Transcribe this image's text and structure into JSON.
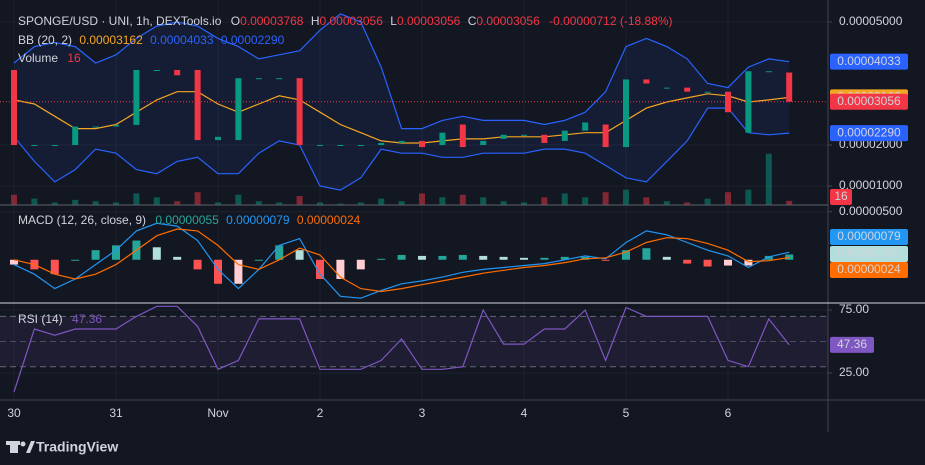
{
  "chart_data": [
    {
      "type": "candlestick",
      "title": "SPONGE/USD · UNI, 1h, DEXTools.io",
      "ohlc": [
        {
          "key": "O",
          "value": "0.00003768"
        },
        {
          "key": "H",
          "value": "0.00003056"
        },
        {
          "key": "L",
          "value": "0.00003056"
        },
        {
          "key": "C",
          "value": "0.00003056"
        }
      ],
      "change": "-0.00000712 (-18.88%)",
      "categories": [
        "30",
        null,
        null,
        null,
        null,
        "31",
        null,
        null,
        null,
        null,
        "Nov",
        null,
        null,
        null,
        null,
        "2",
        null,
        null,
        null,
        null,
        "3",
        null,
        null,
        null,
        null,
        "4",
        null,
        null,
        null,
        null,
        "5",
        null,
        null,
        null,
        null,
        "6",
        null,
        null,
        null
      ],
      "open": [
        3.83e-05,
        2e-05,
        2e-05,
        2e-05,
        2.45e-05,
        2.45e-05,
        2.49e-05,
        3.83e-05,
        3.83e-05,
        3.83e-05,
        2.12e-05,
        2.12e-05,
        3.63e-05,
        3.63e-05,
        3.63e-05,
        2e-05,
        2e-05,
        2e-05,
        2e-05,
        2.05e-05,
        2.1e-05,
        2e-05,
        2.5e-05,
        2e-05,
        2.15e-05,
        2.25e-05,
        2.25e-05,
        2.1e-05,
        2.35e-05,
        2.5e-05,
        1.95e-05,
        3.6e-05,
        3.4e-05,
        3.4e-05,
        3.3e-05,
        3.3e-05,
        2.3e-05,
        3.8e-05,
        3.768e-05
      ],
      "close": [
        2e-05,
        2e-05,
        2e-05,
        2.45e-05,
        2.45e-05,
        2.49e-05,
        3.83e-05,
        3.83e-05,
        3.7e-05,
        2.12e-05,
        2.2e-05,
        3.63e-05,
        3.63e-05,
        3.63e-05,
        2e-05,
        2e-05,
        2e-05,
        2e-05,
        2.05e-05,
        2.1e-05,
        1.95e-05,
        2.3e-05,
        1.95e-05,
        2.1e-05,
        2.25e-05,
        2.25e-05,
        2.05e-05,
        2.35e-05,
        2.55e-05,
        1.95e-05,
        3.6e-05,
        3.5e-05,
        3.4e-05,
        3.3e-05,
        3.3e-05,
        2.8e-05,
        3.8e-05,
        3.8e-05,
        3.056e-05
      ],
      "up_color": "#089981",
      "down_color": "#f23645",
      "ylim": [
        5.37e-06,
        5.537e-05
      ],
      "yticks": [
        {
          "value": 5e-05,
          "label": "0.00005000"
        },
        {
          "value": 2e-05,
          "label": "0.00002000"
        },
        {
          "value": 1e-05,
          "label": "0.00001000"
        }
      ],
      "grid": true,
      "bollinger": {
        "name": "BB (20, 2)",
        "legend": [
          {
            "value": "0.00003162",
            "color": "#f5a623"
          },
          {
            "value": "0.00004033",
            "color": "#2962ff"
          },
          {
            "value": "0.00002290",
            "color": "#2962ff"
          }
        ],
        "upper": [
          4e-05,
          4.4e-05,
          4.5e-05,
          4.4e-05,
          4e-05,
          4.2e-05,
          4.6e-05,
          4.9e-05,
          5e-05,
          4.9e-05,
          4.6e-05,
          4.4e-05,
          4.1e-05,
          4.2e-05,
          4.3e-05,
          4.8e-05,
          5.2e-05,
          5e-05,
          3.9e-05,
          2.4e-05,
          2.4e-05,
          2.6e-05,
          2.7e-05,
          2.6e-05,
          2.6e-05,
          2.6e-05,
          2.5e-05,
          2.6e-05,
          2.8e-05,
          3.3e-05,
          4.4e-05,
          4.6e-05,
          4.4e-05,
          4.1e-05,
          3.5e-05,
          3.4e-05,
          3.9e-05,
          4.1e-05,
          4.033e-05
        ],
        "middle": [
          3.1e-05,
          3e-05,
          2.7e-05,
          2.4e-05,
          2.4e-05,
          2.5e-05,
          2.8e-05,
          3.1e-05,
          3.3e-05,
          3.3e-05,
          3e-05,
          2.8e-05,
          3e-05,
          3.2e-05,
          3.1e-05,
          2.8e-05,
          2.5e-05,
          2.3e-05,
          2.1e-05,
          2.05e-05,
          2.05e-05,
          2.1e-05,
          2.15e-05,
          2.15e-05,
          2.2e-05,
          2.2e-05,
          2.2e-05,
          2.25e-05,
          2.3e-05,
          2.3e-05,
          2.6e-05,
          2.9e-05,
          3.05e-05,
          3.15e-05,
          3.25e-05,
          3.2e-05,
          3.05e-05,
          3.1e-05,
          3.162e-05
        ],
        "lower": [
          2.2e-05,
          1.6e-05,
          1.1e-05,
          1.4e-05,
          1.9e-05,
          1.8e-05,
          1.4e-05,
          1.3e-05,
          1.6e-05,
          1.7e-05,
          1.3e-05,
          1.3e-05,
          1.8e-05,
          2.1e-05,
          2e-05,
          1e-05,
          9e-06,
          1.2e-05,
          1.9e-05,
          1.8e-05,
          1.8e-05,
          1.7e-05,
          1.7e-05,
          1.8e-05,
          1.8e-05,
          1.8e-05,
          1.9e-05,
          1.9e-05,
          1.8e-05,
          1.5e-05,
          1.2e-05,
          1.1e-05,
          1.6e-05,
          2.1e-05,
          2.9e-05,
          2.9e-05,
          2.3e-05,
          2.25e-05,
          2.29e-05
        ],
        "band_color": "#2962ff",
        "middle_color": "#f5a623"
      },
      "volume": {
        "name": "Volume",
        "values": [
          40,
          25,
          10,
          20,
          15,
          10,
          45,
          30,
          15,
          50,
          10,
          40,
          15,
          10,
          35,
          10,
          5,
          10,
          25,
          15,
          45,
          30,
          40,
          30,
          15,
          10,
          30,
          45,
          30,
          50,
          60,
          30,
          15,
          10,
          25,
          50,
          60,
          200,
          16
        ],
        "ylim": [
          0,
          800
        ]
      },
      "price_tags": [
        {
          "value": 4.033e-05,
          "label": "0.00004033",
          "color": "#2962ff"
        },
        {
          "value": 3.162e-05,
          "label": "0.00003162",
          "color": "#f5a623"
        },
        {
          "value": 3.056e-05,
          "label": "0.00003056",
          "color": "#f23645"
        },
        {
          "value": 2.29e-05,
          "label": "0.00002290",
          "color": "#2962ff"
        }
      ]
    },
    {
      "type": "macd",
      "name": "MACD (12, 26, close, 9)",
      "legend": [
        {
          "value": "0.00000055",
          "color": "#26a69a"
        },
        {
          "value": "0.00000079",
          "color": "#2196f3"
        },
        {
          "value": "0.00000024",
          "color": "#ff6d00"
        }
      ],
      "histogram": [
        -5e-07,
        -1e-06,
        -1.5e-06,
        0,
        1e-06,
        1.5e-06,
        2e-06,
        1.3e-06,
        3e-07,
        -1e-06,
        -2.5e-06,
        -2.5e-06,
        0,
        1.5e-06,
        1e-06,
        -2e-06,
        -2e-06,
        -1e-06,
        1e-07,
        5e-07,
        4e-07,
        4e-07,
        5e-07,
        4e-07,
        3e-07,
        2e-07,
        2e-07,
        3e-07,
        3e-07,
        -1e-07,
        1e-06,
        1.2e-06,
        3e-07,
        -4e-07,
        -7e-07,
        -6e-07,
        -6e-07,
        4e-07,
        5.5e-07
      ],
      "macd": [
        -5e-07,
        -1.5e-06,
        -3e-06,
        -2e-06,
        -5e-07,
        1e-06,
        3e-06,
        3.8e-06,
        3.5e-06,
        2e-06,
        -1e-06,
        -3e-06,
        -1e-06,
        1.5e-06,
        2.2e-06,
        -1.5e-06,
        -3.8e-06,
        -4e-06,
        -3.2e-06,
        -2.5e-06,
        -2.2e-06,
        -1.8e-06,
        -1.3e-06,
        -1e-06,
        -8e-07,
        -6e-07,
        -4e-07,
        0,
        4e-07,
        1e-07,
        1.8e-06,
        3e-06,
        2.6e-06,
        1.8e-06,
        1e-06,
        4e-07,
        -8e-07,
        3e-07,
        7.9e-07
      ],
      "signal": [
        0,
        -5e-07,
        -1.5e-06,
        -2e-06,
        -1.5e-06,
        -5e-07,
        1e-06,
        2.5e-06,
        3.2e-06,
        3e-06,
        1.5e-06,
        -5e-07,
        -1e-06,
        0,
        1.2e-06,
        5e-07,
        -1.8e-06,
        -3e-06,
        -3.3e-06,
        -3e-06,
        -2.6e-06,
        -2.2e-06,
        -1.8e-06,
        -1.4e-06,
        -1.1e-06,
        -8e-07,
        -6e-07,
        -3e-07,
        1e-07,
        2e-07,
        8e-07,
        1.8e-06,
        2.3e-06,
        2.2e-06,
        1.7e-06,
        1e-06,
        -2e-07,
        -1e-07,
        2.4e-07
      ],
      "macd_color": "#2196f3",
      "signal_color": "#ff6d00",
      "hist_colors": [
        "#26a69a",
        "#b2dfdb",
        "#ff5252",
        "#ffcdd2"
      ],
      "ylim": [
        -4.5e-06,
        5.7e-06
      ],
      "yticks": [
        {
          "value": 5e-06,
          "label": "0.00000500"
        }
      ],
      "tags": [
        {
          "value": 7.9e-07,
          "label": "0.00000079",
          "color": "#2196f3"
        },
        {
          "value": 5.5e-07,
          "label": "0.00000055",
          "color": "#b2dfdb"
        },
        {
          "value": 2.4e-07,
          "label": "0.00000024",
          "color": "#ff6d00"
        }
      ]
    },
    {
      "type": "rsi",
      "name": "RSI (14)",
      "values": [
        10,
        60,
        55,
        60,
        60,
        60,
        70,
        78,
        78,
        62,
        28,
        35,
        68,
        68,
        68,
        28,
        28,
        28,
        35,
        52,
        28,
        28,
        30,
        75,
        48,
        48,
        60,
        60,
        75,
        35,
        77,
        70,
        70,
        70,
        70,
        35,
        30,
        68,
        47.36
      ],
      "color": "#7e57c2",
      "bands": [
        70,
        50,
        30
      ],
      "ylim": [
        3.6,
        80.6
      ],
      "yticks": [
        {
          "value": 75,
          "label": "75.00"
        },
        {
          "value": 25,
          "label": "25.00"
        }
      ]
    }
  ],
  "footer": "TradingView"
}
